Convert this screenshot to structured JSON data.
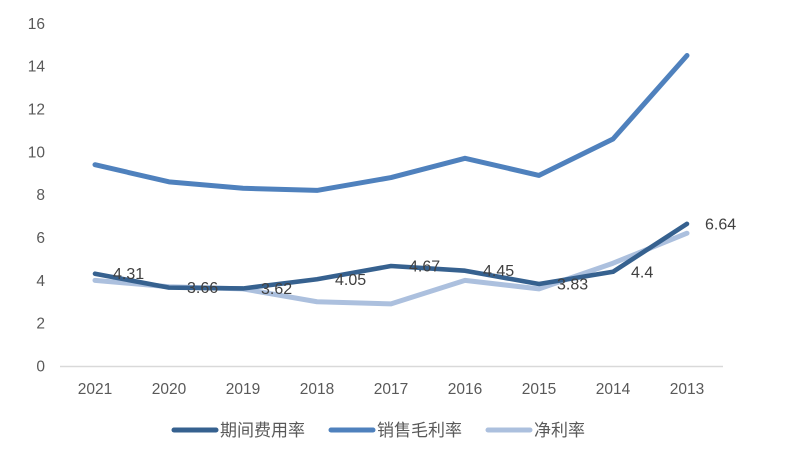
{
  "chart_data": {
    "type": "line",
    "title": "",
    "xlabel": "",
    "ylabel": "",
    "categories": [
      "2021",
      "2020",
      "2019",
      "2018",
      "2017",
      "2016",
      "2015",
      "2014",
      "2013"
    ],
    "series": [
      {
        "name": "期间费用率",
        "color": "#36618F",
        "values": [
          4.31,
          3.66,
          3.62,
          4.05,
          4.67,
          4.45,
          3.83,
          4.4,
          6.64
        ],
        "data_labels": [
          "4.31",
          "3.66",
          "3.62",
          "4.05",
          "4.67",
          "4.45",
          "3.83",
          "4.4",
          "6.64"
        ]
      },
      {
        "name": "销售毛利率",
        "color": "#4F81BD",
        "values": [
          9.4,
          8.6,
          8.3,
          8.2,
          8.8,
          9.7,
          8.9,
          10.6,
          14.5
        ],
        "data_labels": []
      },
      {
        "name": "净利率",
        "color": "#ACC0DE",
        "values": [
          4.0,
          3.7,
          3.6,
          3.0,
          2.9,
          4.0,
          3.6,
          4.8,
          6.2
        ],
        "data_labels": []
      }
    ],
    "ylim": [
      0,
      16
    ],
    "yticks": [
      0,
      2,
      4,
      6,
      8,
      10,
      12,
      14,
      16
    ],
    "grid": false,
    "legend_position": "bottom",
    "colors": {
      "axis_line": "#D9D9D9",
      "tick_text": "#595959",
      "data_label_text": "#404040",
      "background": "#FFFFFF"
    }
  }
}
